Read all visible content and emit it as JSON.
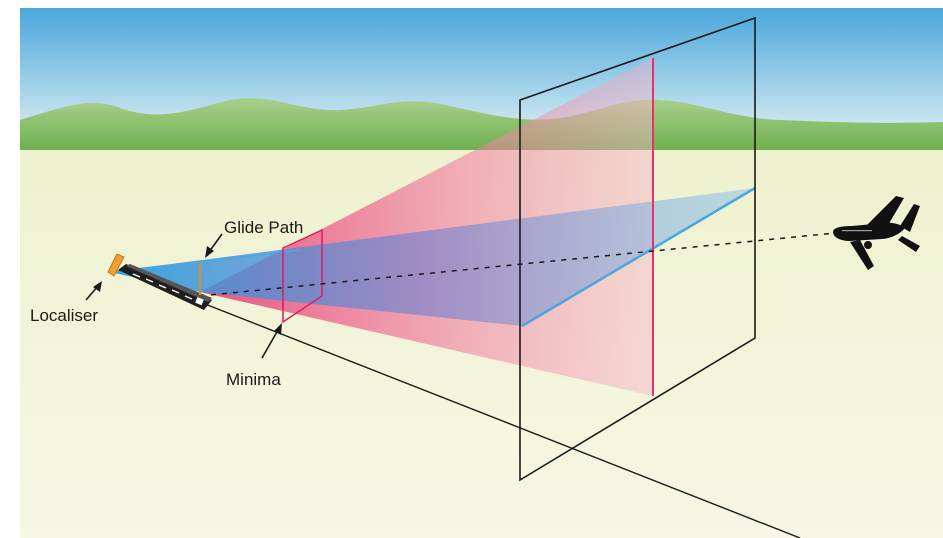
{
  "diagram": {
    "labels": {
      "glide_path": "Glide Path",
      "localiser": "Localiser",
      "minima": "Minima"
    },
    "colors": {
      "sky_top": "#4aa7dc",
      "sky_bottom": "#e6f3f4",
      "hills": "#8fc27a",
      "ground_near": "#eef2cf",
      "ground_far": "#f6f7e4",
      "localiser_beam": "#ee5a8c",
      "glide_path_beam": "#49a9df",
      "localiser_antenna": "#f0a030",
      "aircraft": "#111111",
      "outline": "#1a1a1a"
    },
    "icons": {
      "aircraft": "airplane-icon",
      "antenna": "antenna-icon",
      "runway": "runway-icon"
    }
  }
}
